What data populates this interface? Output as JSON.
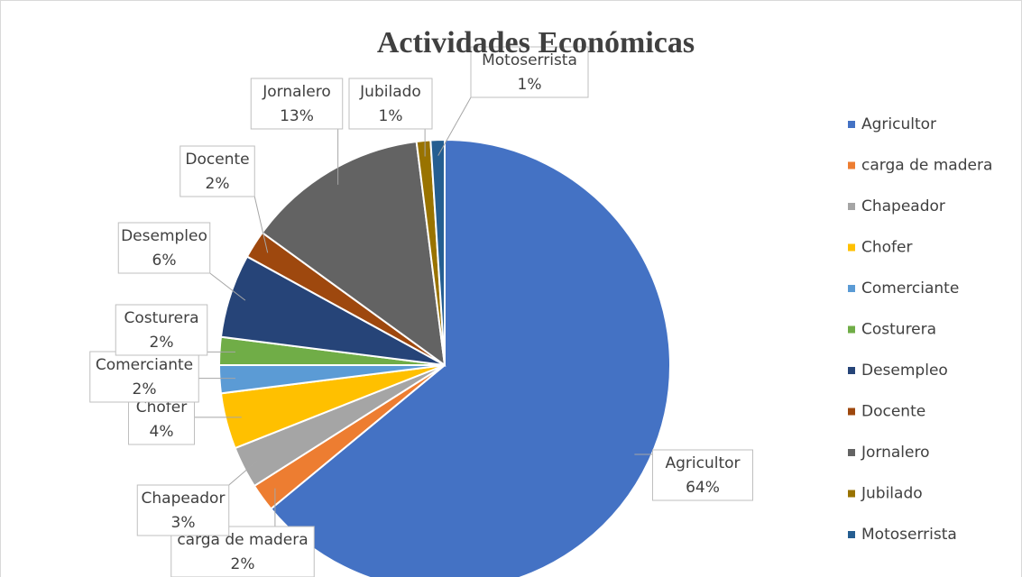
{
  "chart_data": {
    "type": "pie",
    "title": "Actividades Económicas",
    "categories": [
      "Agricultor",
      "carga de madera",
      "Chapeador",
      "Chofer",
      "Comerciante",
      "Costurera",
      "Desempleo",
      "Docente",
      "Jornalero",
      "Jubilado",
      "Motoserrista"
    ],
    "values": [
      64,
      2,
      3,
      4,
      2,
      2,
      6,
      2,
      13,
      1,
      1
    ],
    "value_labels": [
      "64%",
      "2%",
      "3%",
      "4%",
      "2%",
      "2%",
      "6%",
      "2%",
      "13%",
      "1%",
      "1%"
    ],
    "colors": [
      "#4472c4",
      "#ed7d31",
      "#a5a5a5",
      "#ffc000",
      "#5b9bd5",
      "#70ad47",
      "#264478",
      "#9e480e",
      "#636363",
      "#997300",
      "#255e91"
    ],
    "legend": "right"
  }
}
